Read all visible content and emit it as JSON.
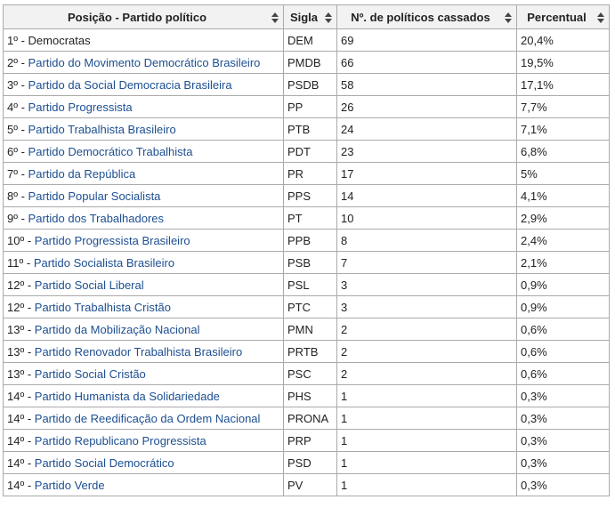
{
  "table": {
    "header": [
      "Posição - Partido político",
      "Sigla",
      "Nº. de políticos cassados",
      "Percentual"
    ],
    "rows": [
      [
        "1º -",
        "Democratas",
        "DEM",
        "69",
        "20,4%"
      ],
      [
        "2º -",
        "Partido do Movimento Democrático Brasileiro",
        "PMDB",
        "66",
        "19,5%"
      ],
      [
        "3º -",
        "Partido da Social Democracia Brasileira",
        "PSDB",
        "58",
        "17,1%"
      ],
      [
        "4º -",
        "Partido Progressista",
        "PP",
        "26",
        "7,7%"
      ],
      [
        "5º -",
        "Partido Trabalhista Brasileiro",
        "PTB",
        "24",
        "7,1%"
      ],
      [
        "6º -",
        "Partido Democrático Trabalhista",
        "PDT",
        "23",
        "6,8%"
      ],
      [
        "7º -",
        "Partido da República",
        "PR",
        "17",
        "5%"
      ],
      [
        "8º -",
        "Partido Popular Socialista",
        "PPS",
        "14",
        "4,1%"
      ],
      [
        "9º -",
        "Partido dos Trabalhadores",
        "PT",
        "10",
        "2,9%"
      ],
      [
        "10º -",
        "Partido Progressista Brasileiro",
        "PPB",
        "8",
        "2,4%"
      ],
      [
        "11º -",
        "Partido Socialista Brasileiro",
        "PSB",
        "7",
        "2,1%"
      ],
      [
        "12º -",
        "Partido Social Liberal",
        "PSL",
        "3",
        "0,9%"
      ],
      [
        "12º -",
        "Partido Trabalhista Cristão",
        "PTC",
        "3",
        "0,9%"
      ],
      [
        "13º -",
        "Partido da Mobilização Nacional",
        "PMN",
        "2",
        "0,6%"
      ],
      [
        "13º -",
        "Partido Renovador Trabalhista Brasileiro",
        "PRTB",
        "2",
        "0,6%"
      ],
      [
        "13º -",
        "Partido Social Cristão",
        "PSC",
        "2",
        "0,6%"
      ],
      [
        "14º -",
        "Partido Humanista da Solidariedade",
        "PHS",
        "1",
        "0,3%"
      ],
      [
        "14º -",
        "Partido de Reedificação da Ordem Nacional",
        "PRONA",
        "1",
        "0,3%"
      ],
      [
        "14º -",
        "Partido Republicano Progressista",
        "PRP",
        "1",
        "0,3%"
      ],
      [
        "14º -",
        "Partido Social Democrático",
        "PSD",
        "1",
        "0,3%"
      ],
      [
        "14º -",
        "Partido Verde",
        "PV",
        "1",
        "0,3%"
      ]
    ]
  }
}
